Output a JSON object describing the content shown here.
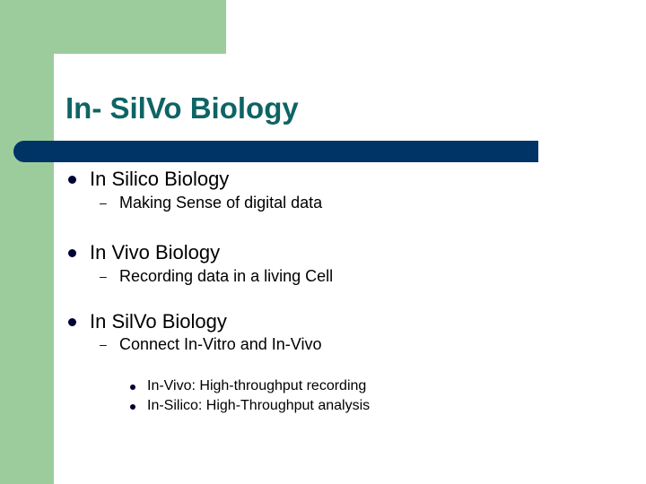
{
  "slide": {
    "title": "In- SilVo Biology",
    "colors": {
      "accent_green": "#9ccc9c",
      "bar_navy": "#003366",
      "title_teal": "#0e6464"
    },
    "bullets": [
      {
        "text": "In Silico Biology",
        "sub": [
          {
            "text": "Making Sense of digital data"
          }
        ]
      },
      {
        "text": "In Vivo Biology",
        "sub": [
          {
            "text": "Recording data in a living Cell"
          }
        ]
      },
      {
        "text": "In SilVo Biology",
        "sub": [
          {
            "text": "Connect In-Vitro and In-Vivo",
            "sub": [
              {
                "text": "In-Vivo: High-throughput recording"
              },
              {
                "text": "In-Silico: High-Throughput analysis"
              }
            ]
          }
        ]
      }
    ],
    "dash_glyph": "–"
  }
}
